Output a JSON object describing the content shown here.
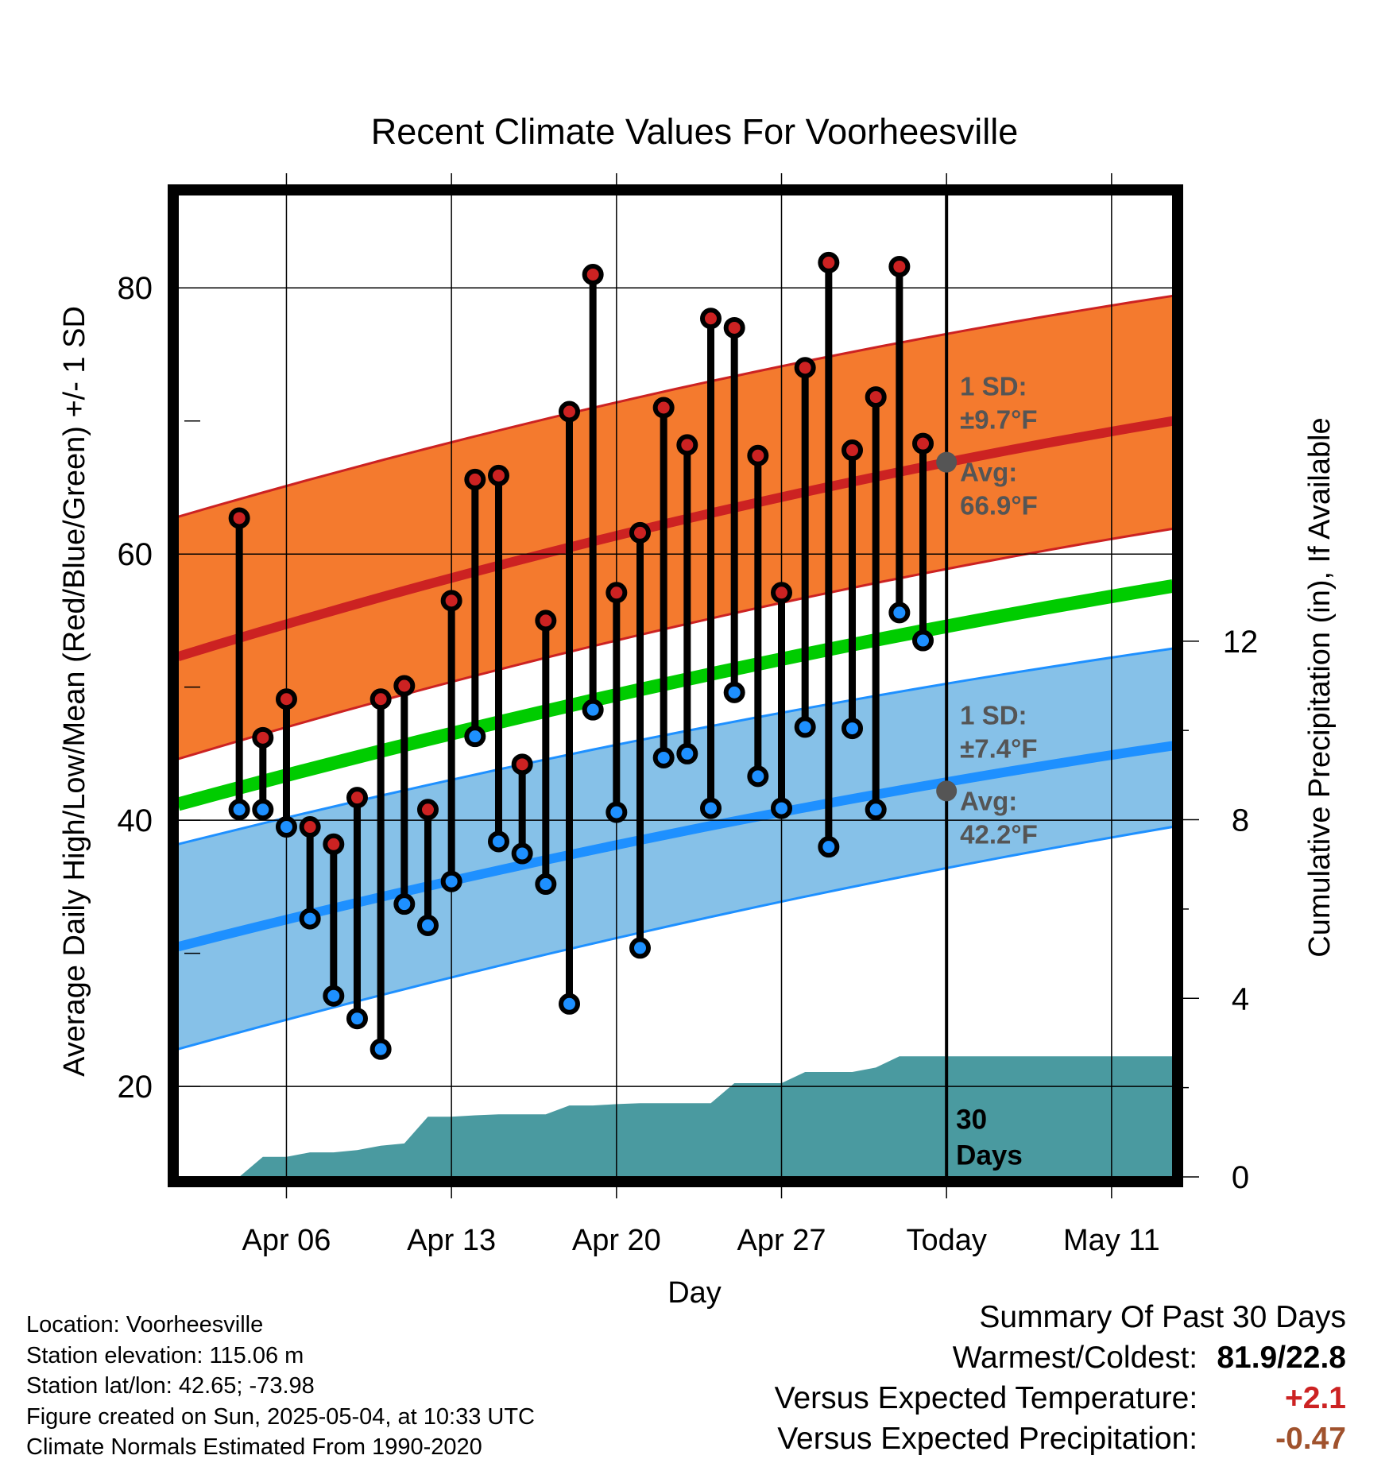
{
  "chart_data": {
    "type": "line",
    "title": "Recent Climate Values For Voorheesville",
    "xlabel": "Day",
    "ylabel": "Average Daily High/Low/Mean (Red/Blue/Green) +/- 1 SD",
    "y2label": "Cumulative Precipitation (in), If Available",
    "ylim": [
      13.2,
      87
    ],
    "y2lim": [
      0,
      22
    ],
    "yticks": [
      20,
      40,
      60,
      80
    ],
    "y2ticks": [
      0,
      4,
      8,
      12
    ],
    "x_range_days": [
      -32.6,
      9.6
    ],
    "x_ticks": [
      {
        "day": -28,
        "label": "Apr 06"
      },
      {
        "day": -21,
        "label": "Apr 13"
      },
      {
        "day": -14,
        "label": "Apr 20"
      },
      {
        "day": -7,
        "label": "Apr 27"
      },
      {
        "day": 0,
        "label": "Today"
      },
      {
        "day": 7,
        "label": "May 11"
      }
    ],
    "today_day": 0,
    "window_label": "30 Days",
    "grid": true,
    "observed": {
      "day": [
        -30,
        -29,
        -28,
        -27,
        -26,
        -25,
        -24,
        -23,
        -22,
        -21,
        -20,
        -19,
        -18,
        -17,
        -16,
        -15,
        -14,
        -13,
        -12,
        -11,
        -10,
        -9,
        -8,
        -7,
        -6,
        -5,
        -4,
        -3,
        -2,
        -1
      ],
      "high": [
        62.7,
        46.2,
        49.1,
        39.5,
        38.2,
        41.7,
        49.1,
        50.1,
        40.8,
        56.5,
        65.6,
        65.9,
        44.2,
        55.0,
        70.7,
        81.0,
        57.1,
        61.6,
        71.0,
        68.2,
        77.7,
        77.0,
        67.4,
        57.1,
        74.0,
        81.9,
        67.8,
        71.8,
        81.6,
        68.3
      ],
      "low": [
        40.8,
        40.8,
        39.5,
        32.6,
        26.8,
        25.1,
        22.8,
        33.7,
        32.1,
        35.4,
        46.3,
        38.4,
        37.5,
        35.2,
        26.2,
        48.3,
        40.6,
        30.4,
        44.7,
        45.0,
        40.9,
        49.6,
        43.3,
        40.9,
        47.0,
        38.0,
        46.9,
        40.8,
        55.6,
        53.5
      ]
    },
    "normals": {
      "day": [
        -32.6,
        9.6
      ],
      "mean": [
        41.2,
        57.6
      ],
      "high_avg": [
        52.3,
        70.0
      ],
      "high_sd_upper": [
        62.8,
        79.4
      ],
      "high_sd_lower": [
        44.6,
        61.9
      ],
      "low_avg": [
        30.5,
        45.6
      ],
      "low_sd_upper": [
        38.2,
        52.9
      ],
      "low_sd_lower": [
        22.8,
        39.5
      ]
    },
    "annotations": {
      "high_sd_label": "1 SD:",
      "high_sd_value": "±9.7°F",
      "high_avg_label": "Avg:",
      "high_avg_value": "66.9°F",
      "high_avg": 66.9,
      "low_sd_label": "1 SD:",
      "low_sd_value": "±7.4°F",
      "low_avg_label": "Avg:",
      "low_avg_value": "42.2°F",
      "low_avg": 42.2
    },
    "precip_cumulative": {
      "day": [
        -30,
        -29,
        -28,
        -27,
        -26,
        -25,
        -24,
        -23,
        -22,
        -21,
        -20,
        -19,
        -18,
        -17,
        -16,
        -15,
        -14,
        -13,
        -12,
        -11,
        -10,
        -9,
        -8,
        -7,
        -6,
        -5,
        -4,
        -3,
        -2,
        -1,
        0,
        9.6
      ],
      "values": [
        0.0,
        0.45,
        0.45,
        0.55,
        0.55,
        0.6,
        0.7,
        0.75,
        1.35,
        1.35,
        1.38,
        1.4,
        1.4,
        1.4,
        1.6,
        1.6,
        1.63,
        1.65,
        1.65,
        1.65,
        1.65,
        2.1,
        2.1,
        2.1,
        2.35,
        2.35,
        2.35,
        2.45,
        2.7,
        2.7,
        2.7,
        2.7
      ]
    },
    "colors": {
      "high": "#cc2222",
      "low": "#1e90ff",
      "mean": "#00cc00",
      "high_band": "#f47a2e",
      "low_band": "#86c1e8",
      "precip": "#4a9aa0",
      "annotation": "#555555"
    }
  },
  "info": {
    "location": "Location: Voorheesville",
    "elevation": "Station elevation: 115.06 m",
    "latlon": "Station lat/lon: 42.65; -73.98",
    "created": "Figure created on Sun, 2025-05-04, at 10:33 UTC",
    "normals": "Climate Normals Estimated From 1990-2020"
  },
  "summary": {
    "title": "Summary Of Past 30 Days",
    "warm_cold_label": "Warmest/Coldest:",
    "warm_cold_value": "81.9/22.8",
    "temp_label": "Versus Expected Temperature:",
    "temp_value": "+2.1",
    "precip_label": "Versus Expected Precipitation:",
    "precip_value": "-0.47"
  }
}
